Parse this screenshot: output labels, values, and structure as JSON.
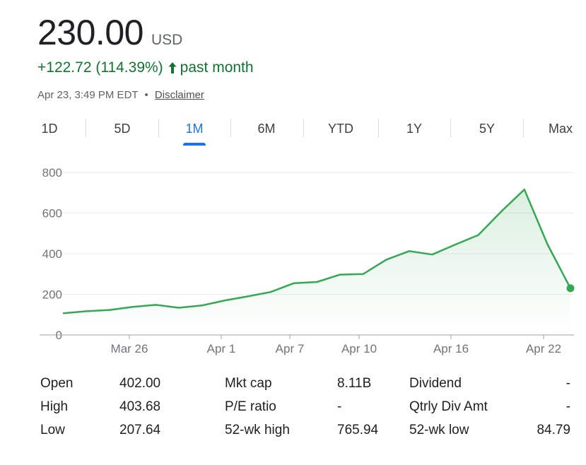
{
  "quote": {
    "price": "230.00",
    "currency": "USD",
    "change": "+122.72 (114.39%)",
    "period": "past month",
    "timestamp": "Apr 23, 3:49 PM EDT",
    "separator": "•",
    "disclaimer": "Disclaimer"
  },
  "colors": {
    "up": "#137333",
    "line": "#34a853",
    "accent": "#1a73e8"
  },
  "tabs": [
    {
      "label": "1D",
      "active": false
    },
    {
      "label": "5D",
      "active": false
    },
    {
      "label": "1M",
      "active": true
    },
    {
      "label": "6M",
      "active": false
    },
    {
      "label": "YTD",
      "active": false
    },
    {
      "label": "1Y",
      "active": false
    },
    {
      "label": "5Y",
      "active": false
    },
    {
      "label": "Max",
      "active": false
    }
  ],
  "chart_data": {
    "type": "area",
    "y_ticks": [
      "800",
      "600",
      "400",
      "200",
      "0"
    ],
    "x_ticks": [
      "Mar 26",
      "Apr 1",
      "Apr 7",
      "Apr 10",
      "Apr 16",
      "Apr 22"
    ],
    "ylim": [
      0,
      800
    ],
    "grid": true,
    "values": [
      107,
      117,
      123,
      138,
      148,
      134,
      145,
      170,
      190,
      212,
      255,
      261,
      297,
      300,
      370,
      413,
      396,
      445,
      492,
      608,
      716,
      447,
      230
    ]
  },
  "stats": {
    "rows": [
      {
        "l1": "Open",
        "v1": "402.00",
        "l2": "Mkt cap",
        "v2": "8.11B",
        "l3": "Dividend",
        "v3": "-"
      },
      {
        "l1": "High",
        "v1": "403.68",
        "l2": "P/E ratio",
        "v2": "-",
        "l3": "Qtrly Div Amt",
        "v3": "-"
      },
      {
        "l1": "Low",
        "v1": "207.64",
        "l2": "52-wk high",
        "v2": "765.94",
        "l3": "52-wk low",
        "v3": "84.79"
      }
    ]
  }
}
